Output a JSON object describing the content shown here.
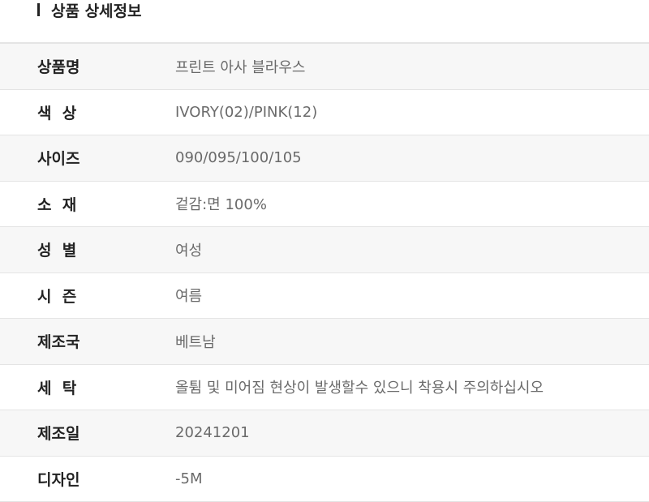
{
  "section_title": "상품 상세정보",
  "rows": [
    {
      "label": "상품명",
      "value": "프린트 아사 블라우스"
    },
    {
      "label": "색  상",
      "value": "IVORY(02)/PINK(12)"
    },
    {
      "label": "사이즈",
      "value": "090/095/100/105"
    },
    {
      "label": "소  재",
      "value": "겉감:면 100%"
    },
    {
      "label": "성  별",
      "value": "여성"
    },
    {
      "label": "시  즌",
      "value": "여름"
    },
    {
      "label": "제조국",
      "value": "베트남"
    },
    {
      "label": "세  탁",
      "value": "올튐 및 미어짐 현상이 발생할수 있으니 착용시 주의하십시오"
    },
    {
      "label": "제조일",
      "value": "20241201"
    },
    {
      "label": "디자인",
      "value": "-5M"
    }
  ]
}
